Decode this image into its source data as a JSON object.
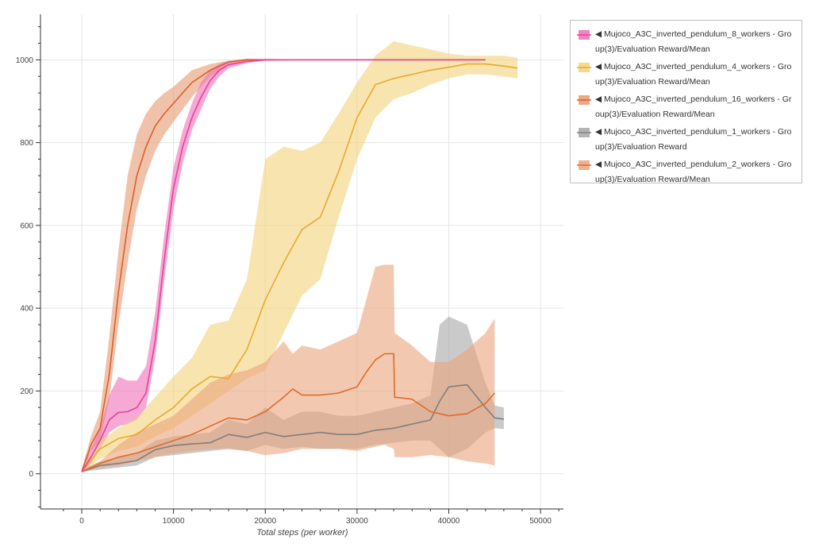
{
  "chart_data": {
    "type": "line",
    "title": "",
    "xlabel": "Total steps (per worker)",
    "ylabel": "",
    "xlim": [
      -4500,
      52500
    ],
    "ylim": [
      -85,
      1110
    ],
    "xticks": [
      0,
      10000,
      20000,
      30000,
      40000,
      50000
    ],
    "yticks": [
      0,
      200,
      400,
      600,
      800,
      1000
    ],
    "grid": true,
    "legend_position": "top-right, outside plot",
    "series": [
      {
        "key": "w8",
        "name": "◀ Mujoco_A3C_inverted_pendulum_8_workers - Group(3)/Evaluation Reward/Mean",
        "color": "#e8409a",
        "band_color": "#ee6fb7",
        "x": [
          0,
          1000,
          2000,
          3000,
          4000,
          5000,
          6000,
          7000,
          8000,
          9000,
          10000,
          11000,
          12000,
          13000,
          14000,
          15000,
          16000,
          18000,
          20000,
          25000,
          30000,
          35000,
          40000,
          44000
        ],
        "y": [
          5,
          40,
          80,
          130,
          148,
          150,
          160,
          195,
          320,
          520,
          690,
          790,
          860,
          910,
          950,
          975,
          988,
          996,
          1000,
          1000,
          1000,
          1000,
          1000,
          1000
        ],
        "lower": [
          5,
          25,
          60,
          100,
          115,
          120,
          130,
          160,
          280,
          470,
          640,
          750,
          830,
          880,
          930,
          960,
          980,
          992,
          998,
          999,
          999,
          999,
          999,
          999
        ],
        "upper": [
          10,
          60,
          110,
          190,
          235,
          225,
          225,
          260,
          390,
          580,
          740,
          830,
          895,
          945,
          975,
          990,
          996,
          1000,
          1002,
          1001,
          1001,
          1001,
          1001,
          1001
        ]
      },
      {
        "key": "w4",
        "name": "◀ Mujoco_A3C_inverted_pendulum_4_workers - Group(3)/Evaluation Reward/Mean",
        "color": "#e8a92e",
        "band_color": "#f3d27a",
        "x": [
          0,
          2000,
          4000,
          6000,
          8000,
          10000,
          12000,
          14000,
          16000,
          18000,
          20000,
          22000,
          24000,
          26000,
          28000,
          30000,
          32000,
          34000,
          36000,
          38000,
          40000,
          42000,
          44000,
          46000,
          47500
        ],
        "y": [
          5,
          60,
          85,
          95,
          130,
          160,
          205,
          235,
          230,
          300,
          420,
          510,
          590,
          620,
          730,
          860,
          940,
          955,
          965,
          975,
          982,
          990,
          990,
          985,
          980
        ],
        "lower": [
          5,
          35,
          55,
          65,
          90,
          110,
          140,
          170,
          200,
          230,
          250,
          340,
          430,
          470,
          620,
          760,
          860,
          905,
          920,
          940,
          955,
          965,
          965,
          960,
          955
        ],
        "upper": [
          10,
          80,
          110,
          135,
          185,
          235,
          280,
          360,
          370,
          470,
          760,
          790,
          780,
          800,
          870,
          945,
          1010,
          1045,
          1035,
          1025,
          1015,
          1010,
          1010,
          1010,
          1005
        ]
      },
      {
        "key": "w16",
        "name": "◀ Mujoco_A3C_inverted_pendulum_16_workers - Group(3)/Evaluation Reward/Mean",
        "color": "#d9602a",
        "band_color": "#e69a70",
        "x": [
          0,
          1000,
          2000,
          3000,
          4000,
          5000,
          6000,
          7000,
          8000,
          9000,
          10000,
          12000,
          14000,
          16000,
          18000,
          20000,
          22000,
          25000,
          30000,
          35000,
          40000,
          44000
        ],
        "y": [
          5,
          70,
          110,
          240,
          440,
          600,
          720,
          790,
          840,
          870,
          895,
          945,
          975,
          995,
          1000,
          1000,
          1000,
          1000,
          1000,
          1000,
          1000,
          1000
        ],
        "lower": [
          5,
          55,
          80,
          180,
          360,
          510,
          640,
          720,
          780,
          820,
          850,
          910,
          960,
          988,
          996,
          998,
          999,
          999,
          999,
          999,
          999,
          999
        ],
        "upper": [
          10,
          90,
          150,
          330,
          540,
          720,
          820,
          870,
          900,
          920,
          935,
          975,
          990,
          998,
          1003,
          1002,
          1001,
          1001,
          1001,
          1001,
          1001,
          1001
        ]
      },
      {
        "key": "w1",
        "name": "◀ Mujoco_A3C_inverted_pendulum_1_workers - Group(3)/Evaluation Reward",
        "color": "#7f7f7f",
        "band_color": "#a6a6a6",
        "x": [
          0,
          2000,
          4000,
          6000,
          8000,
          10000,
          12000,
          14000,
          16000,
          18000,
          20000,
          22000,
          24000,
          26000,
          28000,
          30000,
          32000,
          34000,
          36000,
          38000,
          39000,
          40000,
          42000,
          44000,
          45000,
          46000
        ],
        "y": [
          5,
          20,
          25,
          32,
          58,
          68,
          72,
          75,
          95,
          88,
          100,
          90,
          95,
          100,
          95,
          95,
          105,
          110,
          120,
          130,
          175,
          210,
          215,
          160,
          135,
          132
        ],
        "lower": [
          5,
          10,
          15,
          20,
          40,
          45,
          50,
          55,
          60,
          55,
          70,
          60,
          65,
          60,
          60,
          60,
          70,
          75,
          80,
          80,
          60,
          40,
          60,
          100,
          110,
          108
        ],
        "upper": [
          10,
          30,
          40,
          50,
          80,
          90,
          95,
          100,
          130,
          120,
          160,
          130,
          150,
          150,
          140,
          140,
          150,
          160,
          170,
          190,
          360,
          380,
          360,
          220,
          165,
          160
        ]
      },
      {
        "key": "w2",
        "name": "◀ Mujoco_A3C_inverted_pendulum_2_workers - Group(3)/Evaluation Reward/Mean",
        "color": "#e06a28",
        "band_color": "#eba47c",
        "x": [
          0,
          2000,
          4000,
          6000,
          8000,
          10000,
          12000,
          14000,
          16000,
          18000,
          20000,
          22000,
          23000,
          24000,
          26000,
          28000,
          30000,
          31000,
          32000,
          33000,
          34000,
          34100,
          36000,
          38000,
          40000,
          42000,
          44000,
          45000
        ],
        "y": [
          5,
          25,
          40,
          50,
          65,
          80,
          95,
          115,
          135,
          130,
          150,
          185,
          205,
          190,
          190,
          195,
          210,
          245,
          275,
          290,
          290,
          185,
          180,
          150,
          140,
          145,
          170,
          195
        ],
        "lower": [
          5,
          15,
          20,
          30,
          40,
          50,
          55,
          60,
          60,
          55,
          45,
          50,
          55,
          60,
          60,
          60,
          55,
          60,
          65,
          70,
          60,
          40,
          40,
          45,
          40,
          30,
          25,
          20
        ],
        "upper": [
          10,
          30,
          70,
          100,
          120,
          140,
          180,
          220,
          240,
          250,
          270,
          320,
          290,
          310,
          300,
          320,
          340,
          420,
          500,
          505,
          505,
          340,
          310,
          270,
          270,
          300,
          340,
          375
        ]
      }
    ]
  }
}
